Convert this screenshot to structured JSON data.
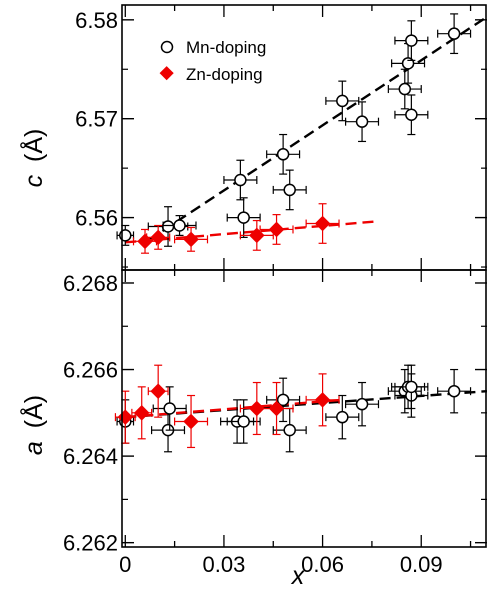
{
  "chart_data": [
    {
      "id": "top",
      "type": "scatter",
      "ylabel_var": "c",
      "ylabel_unit": "(Å)",
      "xlim": [
        -0.001,
        0.11
      ],
      "ylim": [
        6.5547,
        6.5815
      ],
      "yticks": [
        {
          "value": 6.56,
          "label": "6.56"
        },
        {
          "value": 6.57,
          "label": "6.57"
        },
        {
          "value": 6.58,
          "label": "6.58"
        }
      ],
      "legend": {
        "position": "top-left"
      },
      "series": [
        {
          "name": "Mn-doping",
          "marker": "open-circle",
          "color": "#000000",
          "points": [
            {
              "x": 0.0,
              "y": 6.5582,
              "xerr": 0.0025,
              "yerr": 0.001
            },
            {
              "x": 0.013,
              "y": 6.5591,
              "xerr": 0.006,
              "yerr": 0.002
            },
            {
              "x": 0.0165,
              "y": 6.5592,
              "xerr": 0.005,
              "yerr": 0.001
            },
            {
              "x": 0.035,
              "y": 6.5638,
              "xerr": 0.005,
              "yerr": 0.002
            },
            {
              "x": 0.036,
              "y": 6.56,
              "xerr": 0.005,
              "yerr": 0.002
            },
            {
              "x": 0.048,
              "y": 6.5664,
              "xerr": 0.005,
              "yerr": 0.002
            },
            {
              "x": 0.05,
              "y": 6.5628,
              "xerr": 0.005,
              "yerr": 0.002
            },
            {
              "x": 0.066,
              "y": 6.5718,
              "xerr": 0.005,
              "yerr": 0.002
            },
            {
              "x": 0.072,
              "y": 6.5697,
              "xerr": 0.005,
              "yerr": 0.002
            },
            {
              "x": 0.085,
              "y": 6.573,
              "xerr": 0.005,
              "yerr": 0.002
            },
            {
              "x": 0.086,
              "y": 6.5756,
              "xerr": 0.005,
              "yerr": 0.002
            },
            {
              "x": 0.087,
              "y": 6.5779,
              "xerr": 0.005,
              "yerr": 0.002
            },
            {
              "x": 0.087,
              "y": 6.5704,
              "xerr": 0.005,
              "yerr": 0.002
            },
            {
              "x": 0.1,
              "y": 6.5786,
              "xerr": 0.005,
              "yerr": 0.002
            }
          ],
          "fit": {
            "x0": 0.007,
            "y0": 6.5577,
            "x1": 0.11,
            "y1": 6.5803
          }
        },
        {
          "name": "Zn-doping",
          "marker": "filled-diamond",
          "color": "#ee0000",
          "points": [
            {
              "x": 0.006,
              "y": 6.5576,
              "xerr": 0.0035,
              "yerr": 0.0012
            },
            {
              "x": 0.01,
              "y": 6.558,
              "xerr": 0.0035,
              "yerr": 0.0012
            },
            {
              "x": 0.02,
              "y": 6.5578,
              "xerr": 0.005,
              "yerr": 0.0012
            },
            {
              "x": 0.04,
              "y": 6.5582,
              "xerr": 0.005,
              "yerr": 0.0015
            },
            {
              "x": 0.046,
              "y": 6.5588,
              "xerr": 0.005,
              "yerr": 0.0015
            },
            {
              "x": 0.06,
              "y": 6.5594,
              "xerr": 0.005,
              "yerr": 0.002
            }
          ],
          "fit": {
            "x0": 0.0,
            "y0": 6.5575,
            "x1": 0.076,
            "y1": 6.5596
          }
        }
      ]
    },
    {
      "id": "bottom",
      "type": "scatter",
      "ylabel_var": "a",
      "ylabel_unit": "(Å)",
      "xlabel": "x",
      "xlim": [
        -0.001,
        0.11
      ],
      "ylim": [
        6.2619,
        6.2683
      ],
      "xticks": [
        {
          "value": 0.0,
          "label": "0"
        },
        {
          "value": 0.03,
          "label": "0.03"
        },
        {
          "value": 0.06,
          "label": "0.06"
        },
        {
          "value": 0.09,
          "label": "0.09"
        }
      ],
      "yticks": [
        {
          "value": 6.262,
          "label": "6.262"
        },
        {
          "value": 6.264,
          "label": "6.264"
        },
        {
          "value": 6.266,
          "label": "6.266"
        },
        {
          "value": 6.268,
          "label": "6.268"
        }
      ],
      "series": [
        {
          "name": "Mn-doping",
          "marker": "open-circle",
          "color": "#000000",
          "points": [
            {
              "x": 0.0,
              "y": 6.2648,
              "xerr": 0.0025,
              "yerr": 0.0005
            },
            {
              "x": 0.013,
              "y": 6.2646,
              "xerr": 0.005,
              "yerr": 0.0005
            },
            {
              "x": 0.0135,
              "y": 6.2651,
              "xerr": 0.005,
              "yerr": 0.0005
            },
            {
              "x": 0.034,
              "y": 6.2648,
              "xerr": 0.005,
              "yerr": 0.0005
            },
            {
              "x": 0.036,
              "y": 6.2648,
              "xerr": 0.005,
              "yerr": 0.0005
            },
            {
              "x": 0.048,
              "y": 6.2653,
              "xerr": 0.005,
              "yerr": 0.0005
            },
            {
              "x": 0.05,
              "y": 6.2646,
              "xerr": 0.005,
              "yerr": 0.0005
            },
            {
              "x": 0.066,
              "y": 6.2649,
              "xerr": 0.005,
              "yerr": 0.0005
            },
            {
              "x": 0.072,
              "y": 6.2652,
              "xerr": 0.005,
              "yerr": 0.0005
            },
            {
              "x": 0.085,
              "y": 6.2655,
              "xerr": 0.005,
              "yerr": 0.0005
            },
            {
              "x": 0.086,
              "y": 6.2656,
              "xerr": 0.005,
              "yerr": 0.0005
            },
            {
              "x": 0.087,
              "y": 6.2654,
              "xerr": 0.005,
              "yerr": 0.0005
            },
            {
              "x": 0.087,
              "y": 6.2656,
              "xerr": 0.005,
              "yerr": 0.0005
            },
            {
              "x": 0.1,
              "y": 6.2655,
              "xerr": 0.005,
              "yerr": 0.0005
            }
          ],
          "fit": {
            "x0": 0.0,
            "y0": 6.2649,
            "x1": 0.11,
            "y1": 6.2655
          }
        },
        {
          "name": "Zn-doping",
          "marker": "filled-diamond",
          "color": "#ee0000",
          "points": [
            {
              "x": 0.0,
              "y": 6.2649,
              "xerr": 0.003,
              "yerr": 0.0006
            },
            {
              "x": 0.005,
              "y": 6.265,
              "xerr": 0.003,
              "yerr": 0.0006
            },
            {
              "x": 0.01,
              "y": 6.2655,
              "xerr": 0.003,
              "yerr": 0.0006
            },
            {
              "x": 0.02,
              "y": 6.2648,
              "xerr": 0.005,
              "yerr": 0.0006
            },
            {
              "x": 0.04,
              "y": 6.2651,
              "xerr": 0.005,
              "yerr": 0.0006
            },
            {
              "x": 0.046,
              "y": 6.2651,
              "xerr": 0.005,
              "yerr": 0.0006
            },
            {
              "x": 0.06,
              "y": 6.2653,
              "xerr": 0.005,
              "yerr": 0.0006
            }
          ],
          "fit": {
            "x0": 0.0,
            "y0": 6.2649,
            "x1": 0.066,
            "y1": 6.2653
          }
        }
      ]
    }
  ]
}
